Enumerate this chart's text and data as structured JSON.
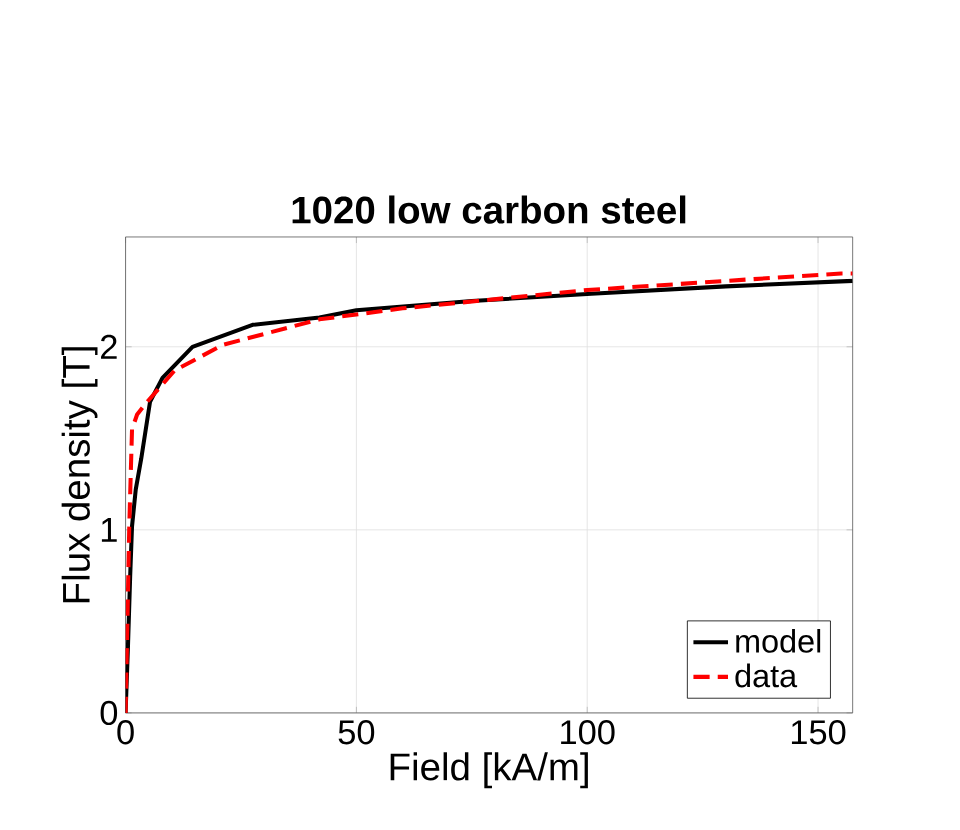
{
  "chart_data": {
    "type": "line",
    "title": "1020 low carbon steel",
    "xlabel": "Field [kA/m]",
    "ylabel": "Flux density [T]",
    "xlim": [
      0,
      157.5
    ],
    "ylim": [
      0,
      2.6
    ],
    "xticks": [
      0,
      50,
      100,
      150
    ],
    "yticks": [
      0,
      1,
      2
    ],
    "grid": true,
    "legend": "bottom right",
    "series": [
      {
        "name": "model",
        "color": "#000000",
        "line_style": "solid",
        "x": [
          0,
          0.5,
          1.0,
          1.4,
          2.2,
          3.4,
          5.3,
          8,
          14.5,
          27.5,
          42,
          50,
          75,
          100.9,
          130,
          157.5
        ],
        "values": [
          0,
          0.35,
          0.75,
          1.02,
          1.22,
          1.39,
          1.7,
          1.83,
          2.0,
          2.12,
          2.16,
          2.2,
          2.25,
          2.29,
          2.33,
          2.36
        ]
      },
      {
        "name": "data",
        "color": "#ff0000",
        "line_style": "dashed",
        "x": [
          0,
          0.4,
          0.8,
          1.4,
          2.5,
          4.7,
          10.6,
          21,
          42,
          60,
          100,
          130,
          155,
          157.5
        ],
        "values": [
          0,
          0.5,
          1.02,
          1.55,
          1.63,
          1.7,
          1.87,
          2.01,
          2.15,
          2.21,
          2.31,
          2.36,
          2.4,
          2.4
        ]
      }
    ]
  }
}
